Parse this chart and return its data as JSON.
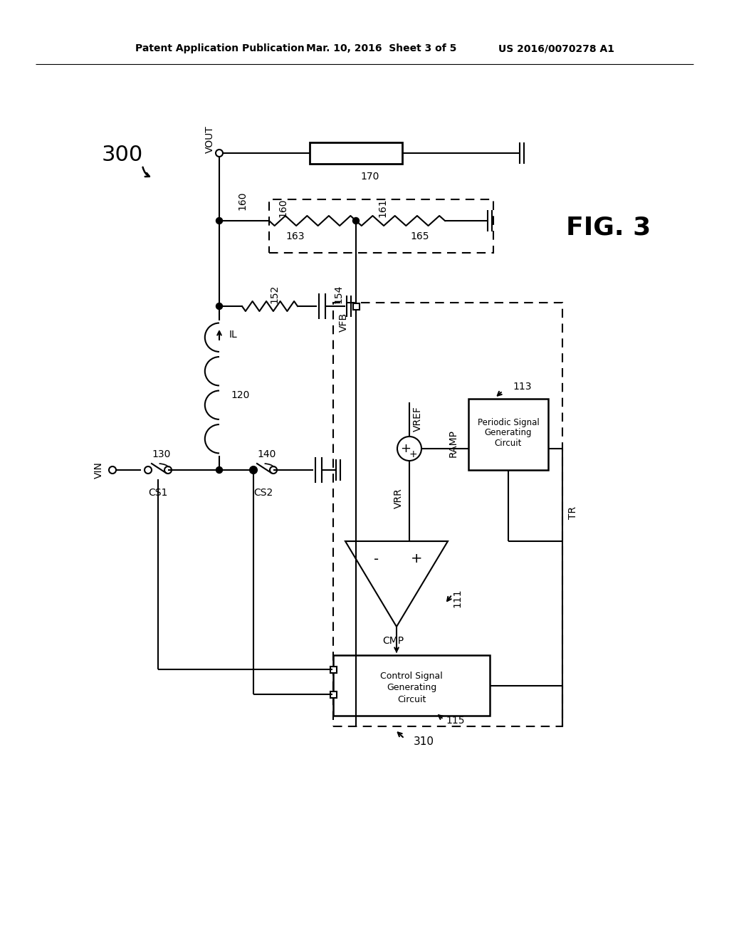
{
  "bg_color": "#ffffff",
  "header_left": "Patent Application Publication",
  "header_mid": "Mar. 10, 2016  Sheet 3 of 5",
  "header_right": "US 2016/0070278 A1",
  "fig_label": "FIG. 3",
  "fig_num": "300",
  "labels": {
    "VOUT": "VOUT",
    "VIN": "VIN",
    "VFB": "VFB",
    "VRR": "VRR",
    "VREF": "VREF",
    "RAMP": "RAMP",
    "CMP": "CMP",
    "IL": "IL",
    "TR": "TR",
    "CS1": "CS1",
    "CS2": "CS2",
    "n120": "120",
    "n130": "130",
    "n140": "140",
    "n152": "152",
    "n154": "154",
    "n160": "160",
    "n161": "161",
    "n163": "163",
    "n165": "165",
    "n170": "170",
    "n111": "111",
    "n113": "113",
    "n115": "115",
    "n310": "310"
  }
}
